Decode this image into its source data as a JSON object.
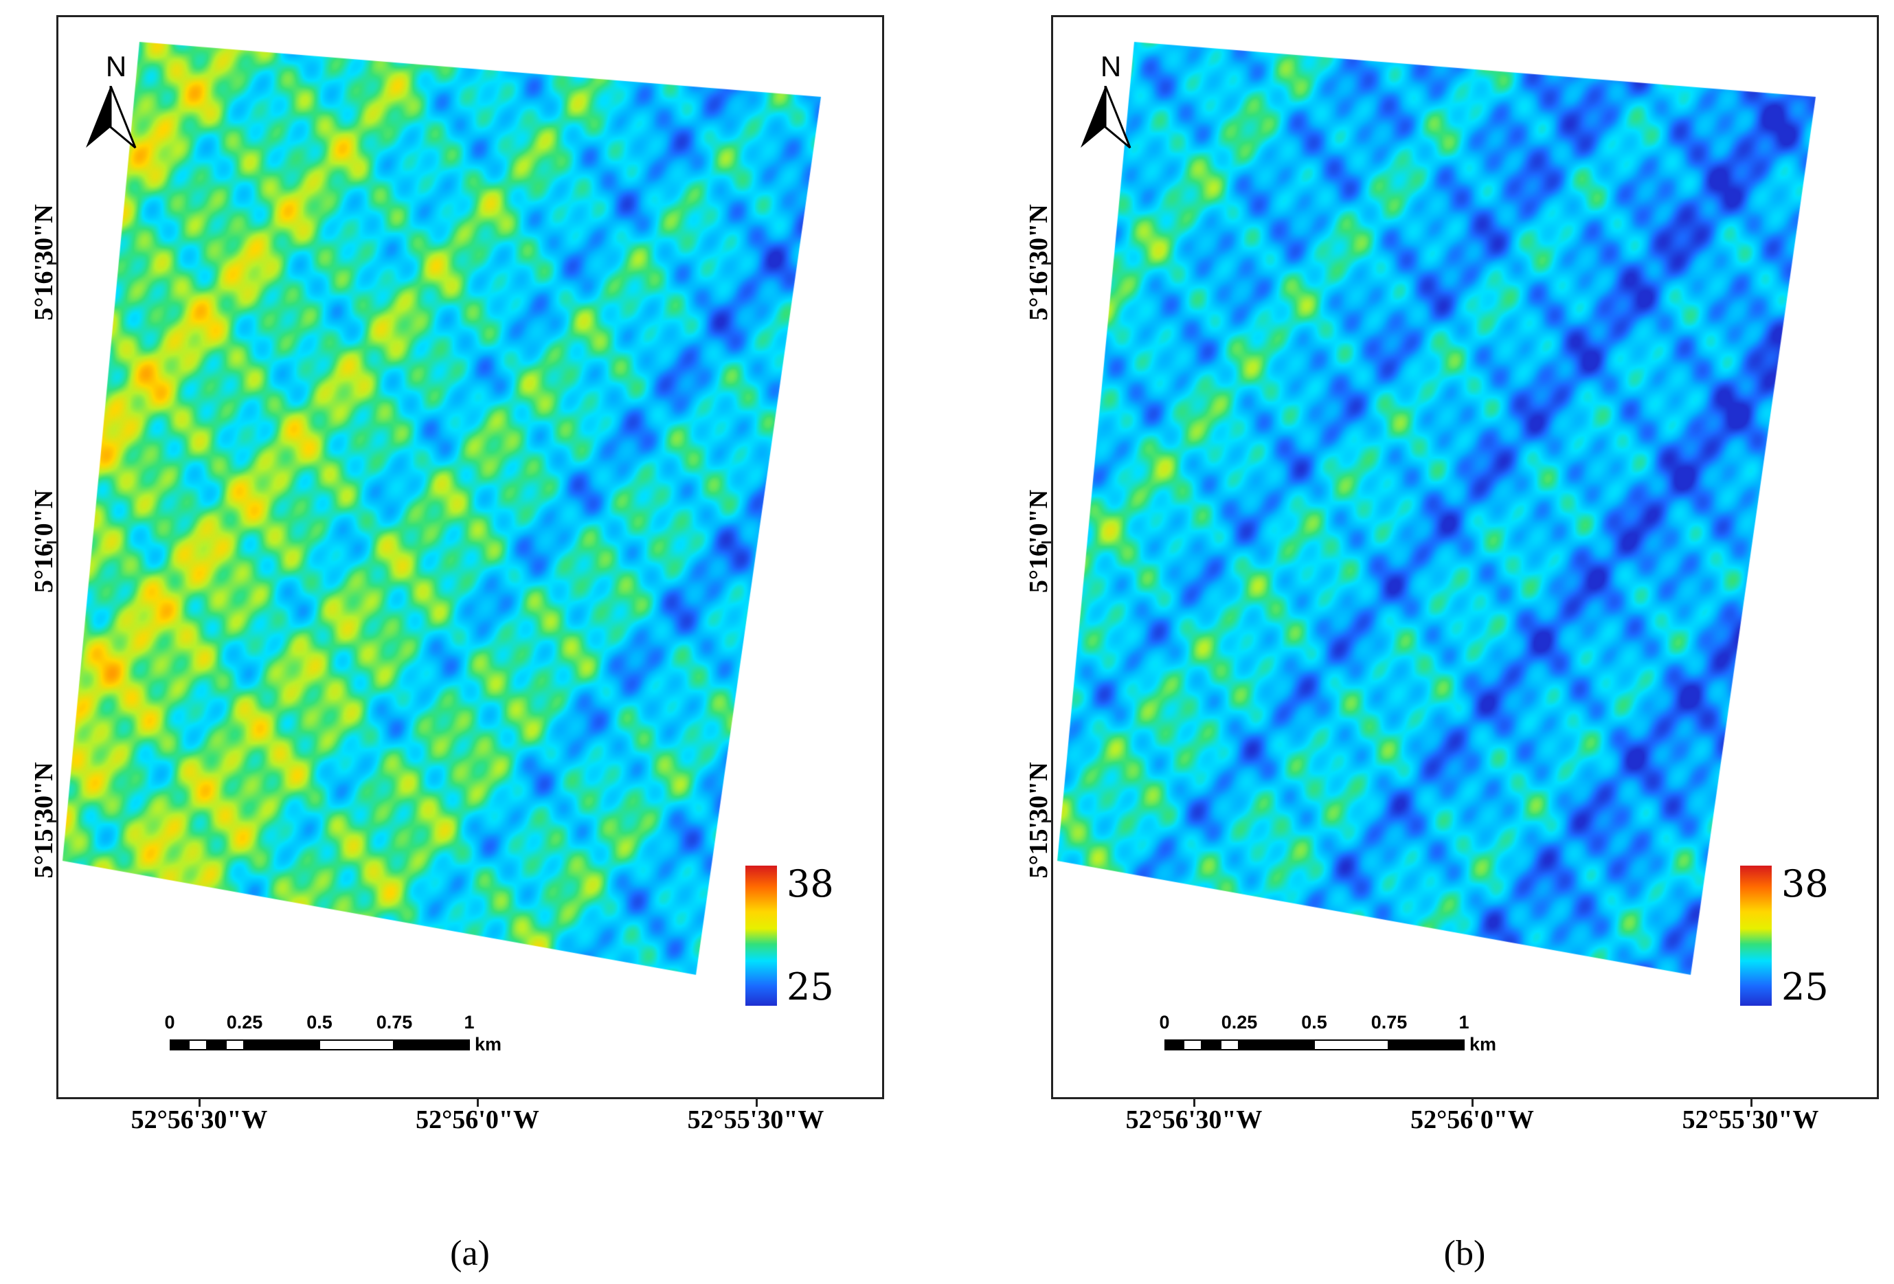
{
  "panels": [
    {
      "id": "a",
      "caption_open": "(",
      "caption_letter": "a",
      "caption_close": ")",
      "north_label": "N",
      "lat_labels": [
        "5°16'30\"N",
        "5°16'0\"N",
        "5°15'30\"N"
      ],
      "lon_labels": [
        "52°56'30\"W",
        "52°56'0\"W",
        "52°55'30\"W"
      ],
      "legend": {
        "max": "38",
        "min": "25"
      },
      "scalebar": {
        "ticks": [
          "0",
          "0.25",
          "0.5",
          "0.75",
          "1"
        ],
        "unit": "km"
      },
      "warm_bias": 0.62
    },
    {
      "id": "b",
      "caption_open": "(",
      "caption_letter": "b",
      "caption_close": ")",
      "north_label": "N",
      "lat_labels": [
        "5°16'30\"N",
        "5°16'0\"N",
        "5°15'30\"N"
      ],
      "lon_labels": [
        "52°56'30\"W",
        "52°56'0\"W",
        "52°55'30\"W"
      ],
      "legend": {
        "max": "38",
        "min": "25"
      },
      "scalebar": {
        "ticks": [
          "0",
          "0.25",
          "0.5",
          "0.75",
          "1"
        ],
        "unit": "km"
      },
      "warm_bias": 0.38
    }
  ],
  "colors": {
    "scale": [
      "#1f2fd0",
      "#1a6aff",
      "#00b4ff",
      "#00e0ff",
      "#33e07a",
      "#b8f02a",
      "#ffd700",
      "#ff9a00",
      "#ff4a00",
      "#d7191c"
    ]
  }
}
